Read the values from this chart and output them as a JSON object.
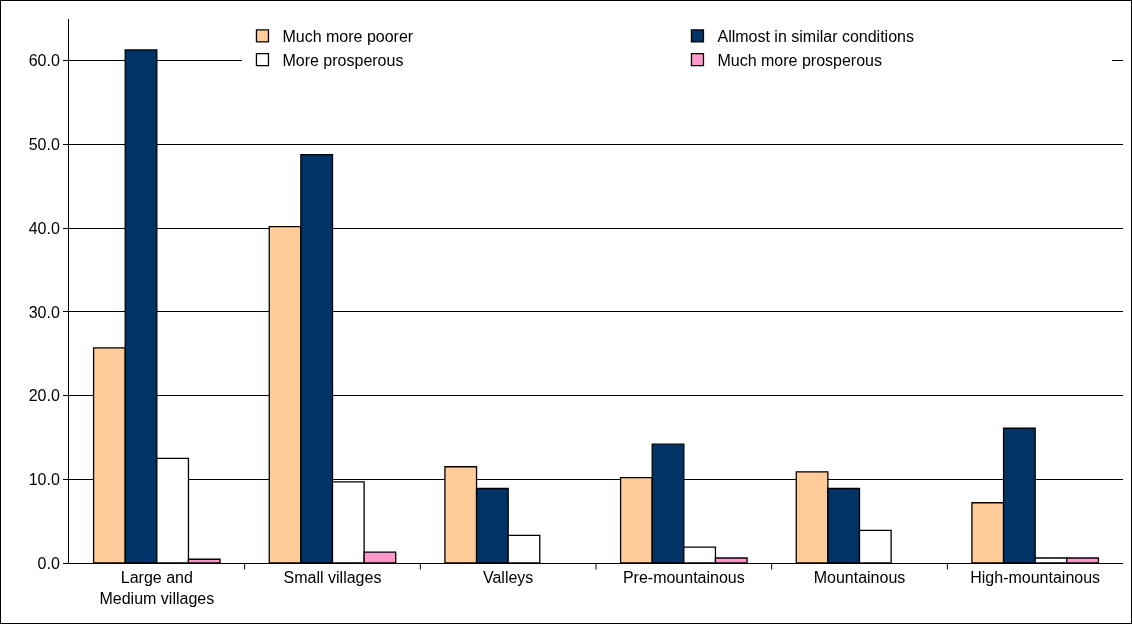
{
  "chart_data": {
    "type": "bar",
    "categories": [
      "Large and Medium villages",
      "Small villages",
      "Valleys",
      "Pre-mountainous",
      "Mountainous",
      "High-mountainous"
    ],
    "series": [
      {
        "name": "Much more poorer",
        "color": "#ffcc99",
        "values": [
          25.7,
          40.2,
          11.5,
          10.2,
          10.9,
          7.2
        ]
      },
      {
        "name": "Allmost in similar conditions",
        "color": "#003366",
        "values": [
          61.3,
          48.8,
          8.9,
          14.2,
          8.9,
          16.1
        ]
      },
      {
        "name": "More prosperous",
        "color": "#ffffff",
        "values": [
          12.5,
          9.7,
          3.3,
          1.9,
          3.9,
          0.6
        ]
      },
      {
        "name": "Much more prosperous",
        "color": "#ff99cc",
        "values": [
          0.45,
          1.3,
          null,
          0.6,
          null,
          0.6
        ]
      }
    ],
    "ylim": [
      0,
      65
    ],
    "yticks": [
      {
        "value": 0,
        "label": "0.0"
      },
      {
        "value": 10,
        "label": "10.0"
      },
      {
        "value": 20,
        "label": "20.0"
      },
      {
        "value": 30,
        "label": "30.0"
      },
      {
        "value": 40,
        "label": "40.0"
      },
      {
        "value": 50,
        "label": "50.0"
      },
      {
        "value": 60,
        "label": "60.0"
      }
    ],
    "grid": "y",
    "legend": "top right"
  }
}
